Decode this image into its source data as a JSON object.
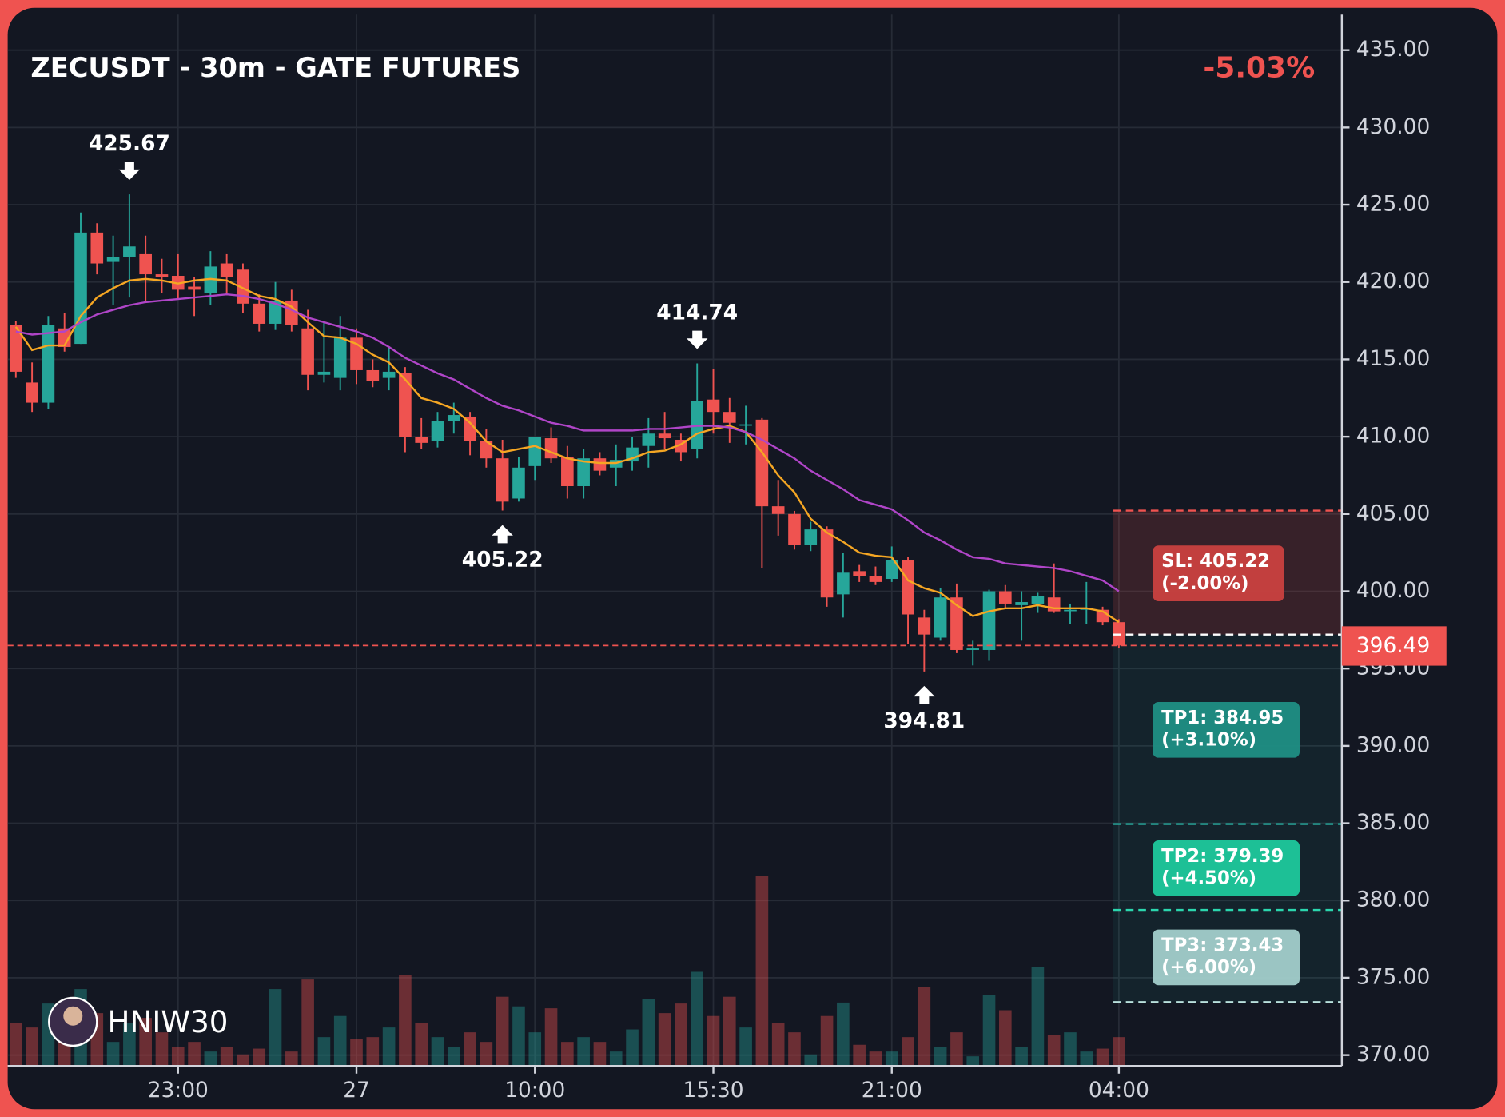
{
  "chart_data": {
    "type": "candlestick",
    "title": "ZECUSDT - 30m - GATE FUTURES",
    "change": {
      "value": -5.03,
      "label": "-5.03%"
    },
    "watermark": "HNIW30",
    "categories": [
      null,
      null,
      null,
      null,
      null,
      null,
      null,
      null,
      null,
      null,
      "23:00",
      null,
      null,
      null,
      null,
      null,
      null,
      null,
      null,
      null,
      null,
      "27",
      null,
      null,
      null,
      null,
      null,
      null,
      null,
      null,
      null,
      null,
      "10:00",
      null,
      null,
      null,
      null,
      null,
      null,
      null,
      null,
      null,
      null,
      "15:30",
      null,
      null,
      null,
      null,
      null,
      null,
      null,
      null,
      null,
      null,
      "21:00",
      null,
      null,
      null,
      null,
      null,
      null,
      null,
      null,
      null,
      null,
      null,
      null,
      null,
      "04:00"
    ],
    "open": [
      417.2,
      413.5,
      412.2,
      417.0,
      416.0,
      423.2,
      421.3,
      421.6,
      421.8,
      420.5,
      420.4,
      419.7,
      419.3,
      421.2,
      420.8,
      418.6,
      417.3,
      418.8,
      417.0,
      414.0,
      413.8,
      416.4,
      414.3,
      413.8,
      414.1,
      410.0,
      409.7,
      411.0,
      411.3,
      409.7,
      408.6,
      406.0,
      408.1,
      409.9,
      408.7,
      406.8,
      408.6,
      408.0,
      408.4,
      409.4,
      410.2,
      409.8,
      409.2,
      412.4,
      411.6,
      410.8,
      411.1,
      405.5,
      405.0,
      403.0,
      404.0,
      399.8,
      401.3,
      401.0,
      400.8,
      402.0,
      398.3,
      397.0,
      399.6,
      396.2,
      396.2,
      400.0,
      399.1,
      399.2,
      399.6,
      398.8,
      398.8,
      398.8,
      398.0
    ],
    "high": [
      417.5,
      414.8,
      417.8,
      418.0,
      424.5,
      423.8,
      423.0,
      425.67,
      423.0,
      421.5,
      421.8,
      420.3,
      422.0,
      421.8,
      421.2,
      419.2,
      420.0,
      419.5,
      418.2,
      417.5,
      417.8,
      417.0,
      415.0,
      415.8,
      414.5,
      411.2,
      411.6,
      412.2,
      411.6,
      410.5,
      409.8,
      408.7,
      410.0,
      410.6,
      409.4,
      409.2,
      409.0,
      409.5,
      410.0,
      411.2,
      411.6,
      410.2,
      414.74,
      414.4,
      412.5,
      412.0,
      411.2,
      407.2,
      405.2,
      404.5,
      404.2,
      402.5,
      401.7,
      401.6,
      402.9,
      402.2,
      398.8,
      400.2,
      400.5,
      396.8,
      400.1,
      400.4,
      400.0,
      399.9,
      401.8,
      399.2,
      400.6,
      399.0,
      398.2
    ],
    "low": [
      413.8,
      411.6,
      411.8,
      415.5,
      416.0,
      420.5,
      418.5,
      419.0,
      418.8,
      419.3,
      418.9,
      417.8,
      418.5,
      419.2,
      418.0,
      416.8,
      416.9,
      416.8,
      413.0,
      413.5,
      413.0,
      413.4,
      413.2,
      413.0,
      409.0,
      409.2,
      409.3,
      410.2,
      408.8,
      408.0,
      405.22,
      405.8,
      407.2,
      408.3,
      406.0,
      406.0,
      407.5,
      406.8,
      407.8,
      408.0,
      409.2,
      408.4,
      408.6,
      410.2,
      409.6,
      409.5,
      401.5,
      403.6,
      402.7,
      402.6,
      399.0,
      398.3,
      400.6,
      400.4,
      400.6,
      396.6,
      394.81,
      396.8,
      396.0,
      395.2,
      395.5,
      398.9,
      396.8,
      398.6,
      398.6,
      397.9,
      397.9,
      397.8,
      396.3
    ],
    "close": [
      414.2,
      412.2,
      417.2,
      415.8,
      423.2,
      421.2,
      421.6,
      422.3,
      420.5,
      420.3,
      419.5,
      419.5,
      421.0,
      420.3,
      418.6,
      417.3,
      418.8,
      417.2,
      414.0,
      414.2,
      416.4,
      414.3,
      413.6,
      414.2,
      410.0,
      409.6,
      411.0,
      411.4,
      409.7,
      408.6,
      405.8,
      408.0,
      410.0,
      408.6,
      406.8,
      408.6,
      407.8,
      408.5,
      409.3,
      410.2,
      409.9,
      409.0,
      412.3,
      411.6,
      410.9,
      410.8,
      405.5,
      405.0,
      403.0,
      404.0,
      399.6,
      401.2,
      401.0,
      400.6,
      402.0,
      398.5,
      397.2,
      399.6,
      396.2,
      396.3,
      400.0,
      399.2,
      399.3,
      399.7,
      398.7,
      398.8,
      398.9,
      398.0,
      396.49
    ],
    "volume": [
      45,
      40,
      65,
      50,
      80,
      55,
      25,
      45,
      50,
      35,
      20,
      25,
      15,
      20,
      12,
      18,
      80,
      15,
      90,
      30,
      52,
      28,
      30,
      40,
      95,
      45,
      30,
      20,
      35,
      25,
      72,
      62,
      35,
      60,
      25,
      30,
      25,
      15,
      38,
      70,
      55,
      65,
      98,
      52,
      72,
      40,
      198,
      45,
      35,
      12,
      52,
      66,
      22,
      15,
      15,
      30,
      82,
      20,
      35,
      10,
      74,
      58,
      20,
      103,
      32,
      35,
      15,
      18,
      30
    ],
    "up_color": "#26a69a",
    "down_color": "#ef5350",
    "moving_averages": [
      {
        "color": "#f5a623",
        "values": [
          417.1,
          415.6,
          415.9,
          415.9,
          417.8,
          419.0,
          419.6,
          420.1,
          420.2,
          420.1,
          419.9,
          420.1,
          420.2,
          420.1,
          419.6,
          419.1,
          418.9,
          418.4,
          417.4,
          416.5,
          416.4,
          416.0,
          415.3,
          414.8,
          413.7,
          412.5,
          412.2,
          411.8,
          410.9,
          409.7,
          409.0,
          409.2,
          409.4,
          409.0,
          408.6,
          408.4,
          408.3,
          408.3,
          408.6,
          409.0,
          409.1,
          409.5,
          410.2,
          410.5,
          410.7,
          410.3,
          409.0,
          407.5,
          406.4,
          404.7,
          403.8,
          403.2,
          402.5,
          402.3,
          402.2,
          400.7,
          400.2,
          399.9,
          399.1,
          398.4,
          398.7,
          398.9,
          398.9,
          399.1,
          398.9,
          398.9,
          398.9,
          398.7,
          398.0
        ]
      },
      {
        "color": "#b045c8",
        "values": [
          416.8,
          416.6,
          416.7,
          416.8,
          417.4,
          417.9,
          418.2,
          418.5,
          418.7,
          418.8,
          418.9,
          419.0,
          419.1,
          419.2,
          419.1,
          418.9,
          418.6,
          418.2,
          417.7,
          417.4,
          417.1,
          416.8,
          416.4,
          415.8,
          415.1,
          414.6,
          414.1,
          413.7,
          413.1,
          412.5,
          412.0,
          411.7,
          411.3,
          410.9,
          410.7,
          410.4,
          410.4,
          410.4,
          410.4,
          410.5,
          410.5,
          410.6,
          410.7,
          410.7,
          410.6,
          410.3,
          409.8,
          409.2,
          408.6,
          407.8,
          407.2,
          406.6,
          405.9,
          405.6,
          405.3,
          404.6,
          403.8,
          403.3,
          402.7,
          402.2,
          402.1,
          401.8,
          401.7,
          401.6,
          401.5,
          401.3,
          401.0,
          400.7,
          400.0
        ]
      }
    ],
    "extremes": [
      425.67,
      405.22,
      414.74,
      394.81
    ],
    "current_price": 396.49,
    "entry": 397.2,
    "levels": [
      {
        "value": 405.22,
        "label": "SL: 405.22",
        "change": {
          "value": -2.0,
          "label": "(-2.00%)"
        },
        "color": "#c9413f",
        "line_color": "#ef5350"
      },
      {
        "value": 384.95,
        "label": "TP1: 384.95",
        "change": {
          "value": 3.1,
          "label": "(+3.10%)"
        },
        "color": "#1f8f84",
        "line_color": "#26a69a"
      },
      {
        "value": 379.39,
        "label": "TP2: 379.39",
        "change": {
          "value": 4.5,
          "label": "(+4.50%)"
        },
        "color": "#1ec99c",
        "line_color": "#2bd6ae"
      },
      {
        "value": 373.43,
        "label": "TP3: 373.43",
        "change": {
          "value": 6.0,
          "label": "(+6.00%)"
        },
        "color": "#a2cfcb",
        "line_color": "#b9e0dc"
      }
    ],
    "ylim": [
      369.3,
      437.3
    ],
    "yticks": [
      {
        "value": 370,
        "label": "370.00"
      },
      {
        "value": 375,
        "label": "375.00"
      },
      {
        "value": 380,
        "label": "380.00"
      },
      {
        "value": 385,
        "label": "385.00"
      },
      {
        "value": 390,
        "label": "390.00"
      },
      {
        "value": 395,
        "label": "395.00"
      },
      {
        "value": 400,
        "label": "400.00"
      },
      {
        "value": 405,
        "label": "405.00"
      },
      {
        "value": 410,
        "label": "410.00"
      },
      {
        "value": 415,
        "label": "415.00"
      },
      {
        "value": 420,
        "label": "420.00"
      },
      {
        "value": 425,
        "label": "425.00"
      },
      {
        "value": 430,
        "label": "430.00"
      },
      {
        "value": 435,
        "label": "435.00"
      }
    ],
    "grid": true
  }
}
